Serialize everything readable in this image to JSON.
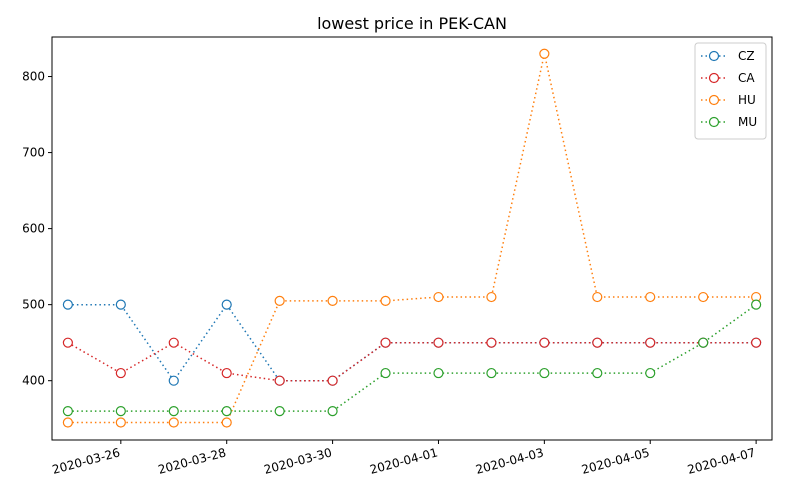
{
  "chart_data": {
    "type": "line",
    "title": "lowest price in PEK-CAN",
    "xlabel": "",
    "ylabel": "",
    "x": [
      "2020-03-25",
      "2020-03-26",
      "2020-03-27",
      "2020-03-28",
      "2020-03-29",
      "2020-03-30",
      "2020-03-31",
      "2020-04-01",
      "2020-04-02",
      "2020-04-03",
      "2020-04-04",
      "2020-04-05",
      "2020-04-06",
      "2020-04-07"
    ],
    "x_tick_labels": [
      "2020-03-26",
      "2020-03-28",
      "2020-03-30",
      "2020-04-01",
      "2020-04-03",
      "2020-04-05",
      "2020-04-07"
    ],
    "y_ticks": [
      400,
      500,
      600,
      700,
      800
    ],
    "ylim": [
      322,
      852
    ],
    "grid": false,
    "legend_placement": "top-right",
    "series": [
      {
        "name": "CZ",
        "color": "#1f77b4",
        "values": [
          500,
          500,
          400,
          500,
          400,
          400,
          450,
          450,
          450,
          450,
          450,
          450,
          450,
          450
        ]
      },
      {
        "name": "CA",
        "color": "#d62728",
        "values": [
          450,
          410,
          450,
          410,
          400,
          400,
          450,
          450,
          450,
          450,
          450,
          450,
          450,
          450
        ]
      },
      {
        "name": "HU",
        "color": "#ff7f0e",
        "values": [
          345,
          345,
          345,
          345,
          505,
          505,
          505,
          510,
          510,
          830,
          510,
          510,
          510,
          510
        ]
      },
      {
        "name": "MU",
        "color": "#2ca02c",
        "values": [
          360,
          360,
          360,
          360,
          360,
          360,
          410,
          410,
          410,
          410,
          410,
          410,
          450,
          500
        ]
      }
    ]
  }
}
